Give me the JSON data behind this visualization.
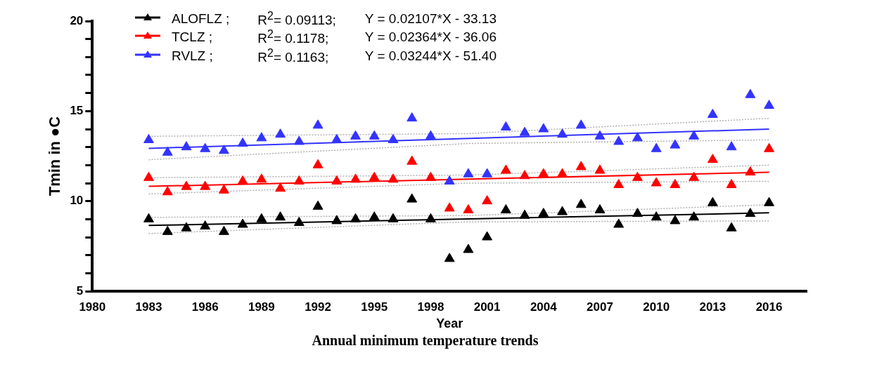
{
  "chart_data": {
    "type": "scatter",
    "title": "Annual minimum temperature trends",
    "xlabel": "Year",
    "ylabel": "Tmin in ●C",
    "x": [
      1983,
      1984,
      1985,
      1986,
      1987,
      1988,
      1989,
      1990,
      1991,
      1992,
      1993,
      1994,
      1995,
      1996,
      1997,
      1998,
      1999,
      2000,
      2001,
      2002,
      2003,
      2004,
      2005,
      2006,
      2007,
      2008,
      2009,
      2010,
      2011,
      2012,
      2013,
      2014,
      2015,
      2016
    ],
    "series": [
      {
        "name": "ALOFLZ ;",
        "color": "#000000",
        "values": [
          9.0,
          8.3,
          8.5,
          8.6,
          8.3,
          8.7,
          9.0,
          9.1,
          8.8,
          9.7,
          8.9,
          9.0,
          9.1,
          9.0,
          10.1,
          9.0,
          6.8,
          7.3,
          8.0,
          9.5,
          9.2,
          9.3,
          9.4,
          9.8,
          9.5,
          8.7,
          9.3,
          9.1,
          8.9,
          9.1,
          9.9,
          8.5,
          9.3,
          9.9
        ]
      },
      {
        "name": "TCLZ ;",
        "color": "#ff0000",
        "values": [
          11.3,
          10.5,
          10.8,
          10.8,
          10.6,
          11.1,
          11.2,
          10.7,
          11.1,
          12.0,
          11.1,
          11.2,
          11.3,
          11.2,
          12.2,
          11.3,
          9.6,
          9.5,
          10.0,
          11.7,
          11.4,
          11.5,
          11.5,
          11.9,
          11.7,
          10.9,
          11.3,
          11.0,
          10.9,
          11.3,
          12.3,
          10.9,
          11.6,
          12.9
        ]
      },
      {
        "name": "RVLZ ;",
        "color": "#3333ff",
        "values": [
          13.4,
          12.7,
          13.0,
          12.9,
          12.8,
          13.2,
          13.5,
          13.7,
          13.3,
          14.2,
          13.4,
          13.6,
          13.6,
          13.4,
          14.6,
          13.6,
          11.1,
          11.5,
          11.5,
          14.1,
          13.8,
          14.0,
          13.7,
          14.2,
          13.6,
          13.3,
          13.5,
          12.9,
          13.1,
          13.6,
          14.8,
          13.0,
          15.9,
          15.3
        ]
      },
      {
        "type": "line",
        "marker": "none",
        "color": "#000000",
        "x": [
          1983,
          2016
        ],
        "values": [
          8.65,
          9.35
        ]
      },
      {
        "type": "line",
        "marker": "none",
        "color": "#ff0000",
        "x": [
          1983,
          2016
        ],
        "values": [
          10.82,
          11.6
        ]
      },
      {
        "type": "line",
        "marker": "none",
        "color": "#3333ff",
        "x": [
          1983,
          2016
        ],
        "values": [
          12.93,
          14.0
        ]
      },
      {
        "type": "line",
        "marker": "none",
        "line_style": "dotted",
        "color": "#b0b0b0",
        "x": [
          1983,
          2000,
          2016
        ],
        "values": [
          8.2,
          8.85,
          8.9
        ]
      },
      {
        "type": "line",
        "marker": "none",
        "line_style": "dotted",
        "color": "#b0b0b0",
        "x": [
          1983,
          2000,
          2016
        ],
        "values": [
          9.1,
          9.2,
          9.8
        ]
      },
      {
        "type": "line",
        "marker": "none",
        "line_style": "dotted",
        "color": "#b0b0b0",
        "x": [
          1983,
          2000,
          2016
        ],
        "values": [
          10.4,
          11.0,
          11.1
        ]
      },
      {
        "type": "line",
        "marker": "none",
        "line_style": "dotted",
        "color": "#b0b0b0",
        "x": [
          1983,
          2000,
          2016
        ],
        "values": [
          11.3,
          11.45,
          12.0
        ]
      },
      {
        "type": "line",
        "marker": "none",
        "line_style": "dotted",
        "color": "#b0b0b0",
        "x": [
          1983,
          2000,
          2016
        ],
        "values": [
          12.3,
          13.2,
          13.4
        ]
      },
      {
        "type": "line",
        "marker": "none",
        "line_style": "dotted",
        "color": "#b0b0b0",
        "x": [
          1983,
          2000,
          2016
        ],
        "values": [
          13.6,
          13.75,
          14.6
        ]
      }
    ],
    "xlim": [
      1980,
      2018
    ],
    "xticks": [
      1980,
      1983,
      1986,
      1989,
      1992,
      1995,
      1998,
      2001,
      2004,
      2007,
      2010,
      2013,
      2016
    ],
    "ylim": [
      5,
      20
    ],
    "yticks": [
      5,
      {
        "value": 6,
        "label": null
      },
      {
        "value": 7,
        "label": null
      },
      {
        "value": 8,
        "label": null
      },
      {
        "value": 9,
        "label": null
      },
      10,
      {
        "value": 11,
        "label": null
      },
      {
        "value": 12,
        "label": null
      },
      {
        "value": 13,
        "label": null
      },
      {
        "value": 14,
        "label": null
      },
      15,
      {
        "value": 16,
        "label": null
      },
      {
        "value": 17,
        "label": null
      },
      {
        "value": 18,
        "label": null
      },
      {
        "value": 19,
        "label": null
      },
      20
    ],
    "marker": "triangle",
    "grid": false,
    "legend": "top left",
    "annotations": [
      "R$^{2}$= 0.09113;",
      "Y = 0.02107*X - 33.13",
      "R$^{2}$=  0.1178;",
      "Y = 0.02364*X - 36.06",
      "R$^{2}$=  0.1163;",
      "Y = 0.03244*X - 51.40"
    ]
  }
}
